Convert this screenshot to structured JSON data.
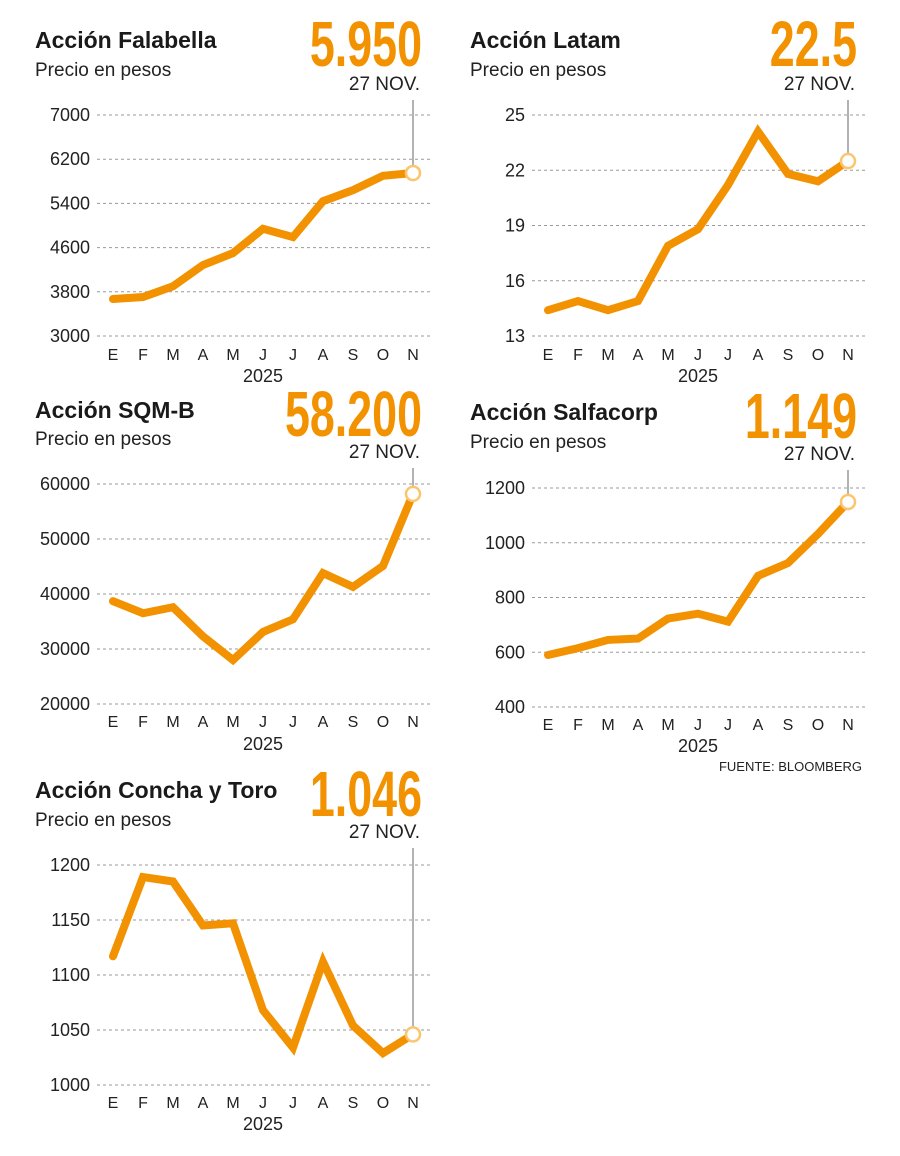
{
  "colors": {
    "line": "#F39200",
    "marker_stroke": "#FBC56E",
    "grid": "#9a9a9a",
    "leader": "#888888"
  },
  "source": "FUENTE: BLOOMBERG",
  "chart_data": [
    {
      "type": "line",
      "title": "Acción Falabella",
      "subtitle": "Precio en pesos",
      "highlight_value": "5.950",
      "highlight_date": "27 NOV.",
      "categories": [
        "E",
        "F",
        "M",
        "A",
        "M",
        "J",
        "J",
        "A",
        "S",
        "O",
        "N"
      ],
      "xlabel": "2025",
      "ylabel": "Precio en pesos",
      "yticks": [
        3000,
        3800,
        4600,
        5400,
        6200,
        7000
      ],
      "ylim": [
        3000,
        7000
      ],
      "values": [
        3670,
        3705,
        3900,
        4285,
        4500,
        4940,
        4790,
        5440,
        5640,
        5900,
        5950
      ]
    },
    {
      "type": "line",
      "title": "Acción Latam",
      "subtitle": "Precio en pesos",
      "highlight_value": "22.5",
      "highlight_date": "27 NOV.",
      "categories": [
        "E",
        "F",
        "M",
        "A",
        "M",
        "J",
        "J",
        "A",
        "S",
        "O",
        "N"
      ],
      "xlabel": "2025",
      "ylabel": "Precio en pesos",
      "yticks": [
        13,
        16,
        19,
        22,
        25
      ],
      "ylim": [
        13,
        25
      ],
      "values": [
        14.4,
        14.9,
        14.4,
        14.9,
        17.9,
        18.8,
        21.2,
        24.1,
        21.8,
        21.4,
        22.5
      ]
    },
    {
      "type": "line",
      "title": "Acción SQM-B",
      "subtitle": "Precio en pesos",
      "highlight_value": "58.200",
      "highlight_date": "27 NOV.",
      "categories": [
        "E",
        "F",
        "M",
        "A",
        "M",
        "J",
        "J",
        "A",
        "S",
        "O",
        "N"
      ],
      "xlabel": "2025",
      "ylabel": "Precio en pesos",
      "yticks": [
        20000,
        30000,
        40000,
        50000,
        60000
      ],
      "ylim": [
        20000,
        60000
      ],
      "values": [
        38700,
        36500,
        37600,
        32300,
        28000,
        33100,
        35400,
        43800,
        41300,
        45100,
        58200
      ]
    },
    {
      "type": "line",
      "title": "Acción Salfacorp",
      "subtitle": "Precio en pesos",
      "highlight_value": "1.149",
      "highlight_date": "27 NOV.",
      "categories": [
        "E",
        "F",
        "M",
        "A",
        "M",
        "J",
        "J",
        "A",
        "S",
        "O",
        "N"
      ],
      "xlabel": "2025",
      "ylabel": "Precio en pesos",
      "yticks": [
        400,
        600,
        800,
        1000,
        1200
      ],
      "ylim": [
        400,
        1200
      ],
      "values": [
        590,
        615,
        645,
        650,
        723,
        741,
        712,
        879,
        926,
        1032,
        1149
      ]
    },
    {
      "type": "line",
      "title": "Acción Concha y Toro",
      "subtitle": "Precio en pesos",
      "highlight_value": "1.046",
      "highlight_date": "27 NOV.",
      "categories": [
        "E",
        "F",
        "M",
        "A",
        "M",
        "J",
        "J",
        "A",
        "S",
        "O",
        "N"
      ],
      "xlabel": "2025",
      "ylabel": "Precio en pesos",
      "yticks": [
        1000,
        1050,
        1100,
        1150,
        1200
      ],
      "ylim": [
        1000,
        1200
      ],
      "values": [
        1117,
        1189,
        1185,
        1145,
        1147,
        1068,
        1034,
        1112,
        1054,
        1029,
        1046
      ]
    }
  ]
}
